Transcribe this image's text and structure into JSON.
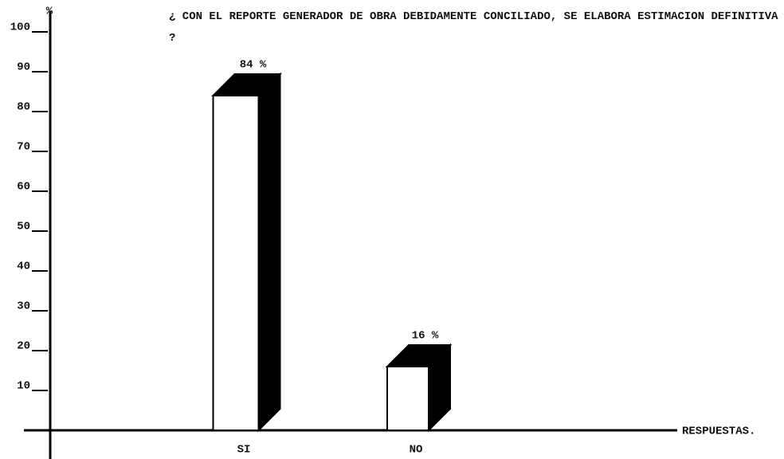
{
  "chart_data": {
    "type": "bar3d",
    "title": "¿ CON EL REPORTE GENERADOR DE OBRA DEBIDAMENTE CONCILIADO, SE ELABORA ESTIMACION DEFINITIVA ?",
    "y_label": "%",
    "x_label": "RESPUESTAS.",
    "categories": [
      "SI",
      "NO"
    ],
    "values": [
      84,
      16
    ],
    "value_labels": [
      "84 %",
      "16 %"
    ],
    "color": "#ffffff",
    "side_color": "#000000",
    "ylim": [
      0,
      100
    ],
    "yticks": [
      10,
      20,
      30,
      40,
      50,
      60,
      70,
      80,
      90,
      100
    ],
    "grid": false
  }
}
